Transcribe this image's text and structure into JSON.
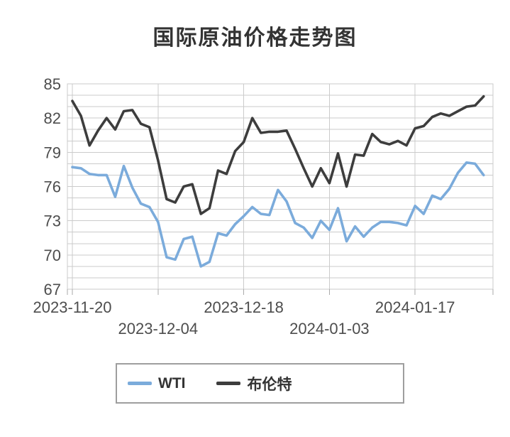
{
  "title": "国际原油价格走势图",
  "colors": {
    "background": "#FFFFFF",
    "title_text": "#333333",
    "grid_line": "#CBCBCB",
    "axis_tick": "#AAAAAA",
    "axis_label": "#4D4D4D",
    "legend_border": "#9E9E9E",
    "legend_text": "#333333",
    "wti_line": "#7BABDB",
    "brent_line": "#3D3D3D"
  },
  "legend": {
    "items": [
      {
        "label": "WTI",
        "color": "#7BABDB"
      },
      {
        "label": "布伦特",
        "color": "#3D3D3D"
      }
    ]
  },
  "chart_data": {
    "type": "line",
    "title": "国际原油价格走势图",
    "xlabel": "",
    "ylabel": "",
    "ylim": [
      67,
      85
    ],
    "y_tick_labels": [
      67,
      70,
      73,
      76,
      79,
      82,
      85
    ],
    "y_minor_step": 1,
    "grid": true,
    "legend_position": "bottom",
    "n_points": 49,
    "x_tick_labels": [
      {
        "index": 0,
        "label": "2023-11-20",
        "row": 1
      },
      {
        "index": 10,
        "label": "2023-12-04",
        "row": 2
      },
      {
        "index": 20,
        "label": "2023-12-18",
        "row": 1
      },
      {
        "index": 30,
        "label": "2024-01-03",
        "row": 2
      },
      {
        "index": 40,
        "label": "2024-01-17",
        "row": 1
      }
    ],
    "series": [
      {
        "name": "WTI",
        "color": "#7BABDB",
        "values": [
          77.7,
          77.6,
          77.1,
          77.0,
          77.0,
          75.1,
          77.8,
          75.9,
          74.5,
          74.2,
          72.9,
          69.8,
          69.6,
          71.4,
          71.6,
          69.0,
          69.4,
          71.9,
          71.7,
          72.7,
          73.4,
          74.2,
          73.6,
          73.5,
          75.7,
          74.7,
          72.8,
          72.4,
          71.5,
          73.0,
          72.2,
          74.1,
          71.2,
          72.5,
          71.6,
          72.4,
          72.9,
          72.9,
          72.8,
          72.6,
          74.3,
          73.6,
          75.2,
          74.9,
          75.8,
          77.2,
          78.1,
          78.0,
          77.0
        ]
      },
      {
        "name": "布伦特",
        "color": "#3D3D3D",
        "values": [
          83.5,
          82.2,
          79.6,
          80.9,
          82.0,
          81.0,
          82.6,
          82.7,
          81.5,
          81.2,
          78.3,
          74.9,
          74.6,
          76.0,
          76.2,
          73.6,
          74.1,
          77.4,
          77.1,
          79.1,
          79.9,
          82.0,
          80.7,
          80.8,
          80.8,
          80.9,
          79.3,
          77.6,
          76.0,
          77.6,
          76.3,
          78.9,
          76.0,
          78.8,
          78.7,
          80.6,
          79.9,
          79.7,
          80.0,
          79.6,
          81.1,
          81.3,
          82.1,
          82.4,
          82.2,
          82.6,
          83.0,
          83.1,
          83.9
        ]
      }
    ]
  }
}
